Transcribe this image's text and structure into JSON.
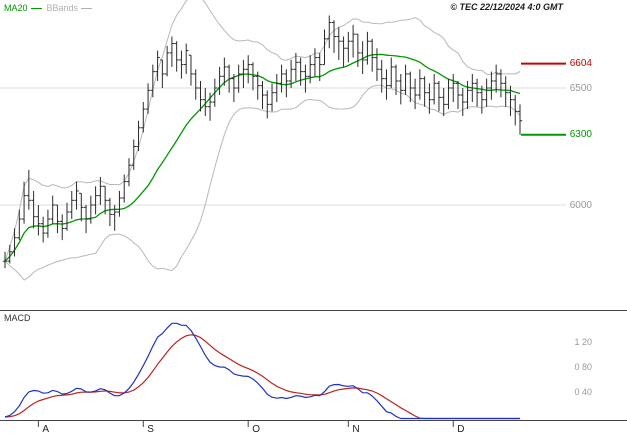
{
  "header": {
    "legend": [
      {
        "label": "MA20",
        "color": "#009900"
      },
      {
        "label": "BBands",
        "color": "#b0b0b0"
      }
    ],
    "copyright": "© TEC 22/12/2024 4:0 GMT"
  },
  "chart_data": {
    "type": "ohlc",
    "title": "",
    "period_shown": "late July to 22 December 2024, daily bars",
    "y_axis": {
      "visible_range": [
        5700,
        6880
      ],
      "price_labels": [
        {
          "text": "6604",
          "value": 6604,
          "color": "#cc0000",
          "line": true,
          "grid": false
        },
        {
          "text": "6500",
          "value": 6500,
          "color": "#999999",
          "line": false,
          "grid": true
        },
        {
          "text": "6300",
          "value": 6300,
          "color": "#009900",
          "line": true,
          "grid": false
        },
        {
          "text": "6000",
          "value": 6000,
          "color": "#999999",
          "line": false,
          "grid": true
        }
      ]
    },
    "x_axis": {
      "labels": [
        "A",
        "S",
        "O",
        "N",
        "D"
      ],
      "tick_indices": [
        7,
        29,
        51,
        72,
        94
      ]
    },
    "overlays": [
      {
        "name": "MA20",
        "window": 20,
        "color": "#009900"
      },
      {
        "name": "BBands",
        "window": 20,
        "mult": 2,
        "color": "#b8b8b8"
      }
    ],
    "bar_color": "#2a2a2a",
    "grid_color": "#dcdcdc",
    "frame_color": "#444444",
    "bars": [
      [
        5800,
        5730,
        5760
      ],
      [
        5830,
        5750,
        5800
      ],
      [
        5900,
        5780,
        5860
      ],
      [
        5980,
        5850,
        5940
      ],
      [
        6100,
        5920,
        6040
      ],
      [
        6150,
        5980,
        6020
      ],
      [
        6060,
        5900,
        5950
      ],
      [
        6000,
        5870,
        5920
      ],
      [
        5950,
        5840,
        5880
      ],
      [
        5980,
        5860,
        5940
      ],
      [
        6040,
        5920,
        6000
      ],
      [
        6000,
        5880,
        5930
      ],
      [
        5960,
        5850,
        5900
      ],
      [
        6010,
        5890,
        5970
      ],
      [
        6060,
        5940,
        6020
      ],
      [
        6100,
        5980,
        6060
      ],
      [
        6050,
        5930,
        5990
      ],
      [
        6000,
        5880,
        5940
      ],
      [
        6040,
        5920,
        6000
      ],
      [
        6080,
        5960,
        6040
      ],
      [
        6120,
        6000,
        6080
      ],
      [
        6080,
        5960,
        6020
      ],
      [
        6030,
        5910,
        5960
      ],
      [
        6000,
        5890,
        5970
      ],
      [
        6060,
        5950,
        6030
      ],
      [
        6130,
        6010,
        6100
      ],
      [
        6200,
        6080,
        6170
      ],
      [
        6280,
        6150,
        6250
      ],
      [
        6360,
        6230,
        6330
      ],
      [
        6440,
        6310,
        6410
      ],
      [
        6520,
        6390,
        6490
      ],
      [
        6600,
        6460,
        6570
      ],
      [
        6660,
        6530,
        6630
      ],
      [
        6620,
        6500,
        6560
      ],
      [
        6680,
        6550,
        6650
      ],
      [
        6720,
        6590,
        6690
      ],
      [
        6700,
        6570,
        6620
      ],
      [
        6660,
        6540,
        6600
      ],
      [
        6690,
        6560,
        6660
      ],
      [
        6640,
        6510,
        6560
      ],
      [
        6580,
        6450,
        6500
      ],
      [
        6530,
        6400,
        6450
      ],
      [
        6500,
        6380,
        6420
      ],
      [
        6480,
        6360,
        6440
      ],
      [
        6540,
        6420,
        6500
      ],
      [
        6590,
        6470,
        6550
      ],
      [
        6630,
        6510,
        6590
      ],
      [
        6600,
        6480,
        6540
      ],
      [
        6560,
        6440,
        6500
      ],
      [
        6600,
        6480,
        6560
      ],
      [
        6620,
        6500,
        6580
      ],
      [
        6640,
        6520,
        6600
      ],
      [
        6610,
        6490,
        6550
      ],
      [
        6570,
        6450,
        6510
      ],
      [
        6530,
        6410,
        6470
      ],
      [
        6490,
        6370,
        6430
      ],
      [
        6520,
        6400,
        6480
      ],
      [
        6560,
        6440,
        6520
      ],
      [
        6600,
        6480,
        6560
      ],
      [
        6580,
        6460,
        6530
      ],
      [
        6620,
        6500,
        6580
      ],
      [
        6650,
        6530,
        6610
      ],
      [
        6630,
        6510,
        6570
      ],
      [
        6600,
        6480,
        6550
      ],
      [
        6640,
        6520,
        6600
      ],
      [
        6670,
        6550,
        6630
      ],
      [
        6650,
        6530,
        6600
      ],
      [
        6750,
        6600,
        6710
      ],
      [
        6810,
        6670,
        6780
      ],
      [
        6790,
        6650,
        6720
      ],
      [
        6760,
        6620,
        6700
      ],
      [
        6720,
        6590,
        6670
      ],
      [
        6740,
        6610,
        6700
      ],
      [
        6770,
        6630,
        6730
      ],
      [
        6730,
        6590,
        6650
      ],
      [
        6700,
        6560,
        6620
      ],
      [
        6740,
        6600,
        6700
      ],
      [
        6710,
        6570,
        6630
      ],
      [
        6670,
        6530,
        6580
      ],
      [
        6620,
        6480,
        6540
      ],
      [
        6580,
        6450,
        6510
      ],
      [
        6630,
        6500,
        6590
      ],
      [
        6600,
        6470,
        6530
      ],
      [
        6560,
        6430,
        6490
      ],
      [
        6600,
        6470,
        6560
      ],
      [
        6570,
        6440,
        6500
      ],
      [
        6540,
        6410,
        6470
      ],
      [
        6580,
        6450,
        6540
      ],
      [
        6550,
        6420,
        6480
      ],
      [
        6520,
        6390,
        6450
      ],
      [
        6560,
        6430,
        6520
      ],
      [
        6530,
        6400,
        6460
      ],
      [
        6500,
        6380,
        6430
      ],
      [
        6540,
        6410,
        6500
      ],
      [
        6560,
        6440,
        6520
      ],
      [
        6530,
        6410,
        6470
      ],
      [
        6500,
        6380,
        6440
      ],
      [
        6530,
        6410,
        6490
      ],
      [
        6560,
        6440,
        6520
      ],
      [
        6540,
        6420,
        6480
      ],
      [
        6510,
        6390,
        6450
      ],
      [
        6540,
        6420,
        6500
      ],
      [
        6570,
        6450,
        6530
      ],
      [
        6600,
        6480,
        6560
      ],
      [
        6580,
        6460,
        6520
      ],
      [
        6550,
        6420,
        6480
      ],
      [
        6510,
        6380,
        6450
      ],
      [
        6470,
        6340,
        6400
      ],
      [
        6430,
        6300,
        6360
      ]
    ],
    "indicator_panel": {
      "title": "MACD",
      "params": {
        "fast": 12,
        "slow": 26,
        "signal": 9
      },
      "labels": [
        {
          "text": "1 20",
          "value": 1.2
        },
        {
          "text": "0 80",
          "value": 0.8
        },
        {
          "text": "0 40",
          "value": 0.4
        }
      ],
      "series_colors": {
        "macd": "#2233bb",
        "signal": "#bb2222"
      }
    }
  }
}
